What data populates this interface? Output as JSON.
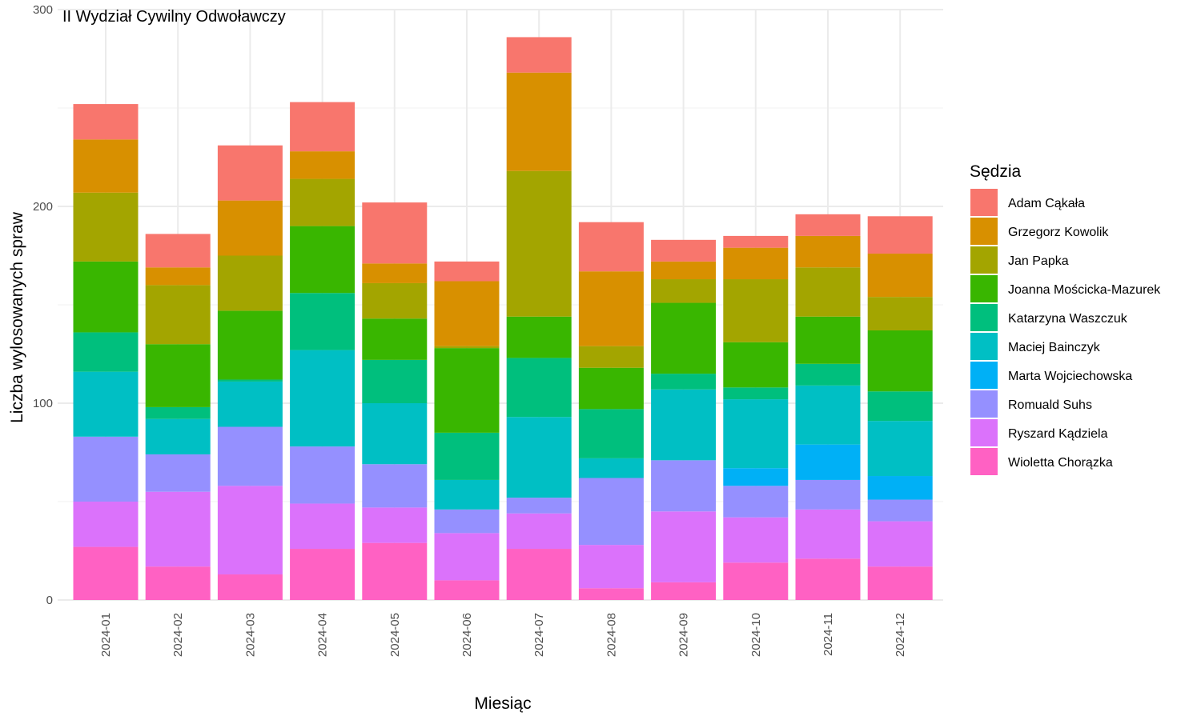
{
  "chart_data": {
    "type": "bar",
    "stacked": true,
    "title": "II Wydział Cywilny Odwoławczy",
    "xlabel": "Miesiąc",
    "ylabel": "Liczba wylosowanych spraw",
    "ylim": [
      0,
      300
    ],
    "yticks": [
      0,
      100,
      200,
      300
    ],
    "grid": true,
    "legend_title": "Sędzia",
    "legend_position": "right",
    "categories": [
      "2024-01",
      "2024-02",
      "2024-03",
      "2024-04",
      "2024-05",
      "2024-06",
      "2024-07",
      "2024-08",
      "2024-09",
      "2024-10",
      "2024-11",
      "2024-12"
    ],
    "series": [
      {
        "name": "Wioletta Chorązka",
        "color": "#FF61C3",
        "values": [
          27,
          17,
          13,
          26,
          29,
          10,
          26,
          6,
          9,
          19,
          21,
          17
        ]
      },
      {
        "name": "Ryszard Kądziela",
        "color": "#DB72FB",
        "values": [
          23,
          38,
          45,
          23,
          18,
          24,
          18,
          22,
          36,
          23,
          25,
          23
        ]
      },
      {
        "name": "Romuald Suhs",
        "color": "#9590FF",
        "values": [
          33,
          19,
          30,
          29,
          22,
          12,
          8,
          34,
          26,
          16,
          15,
          11
        ]
      },
      {
        "name": "Marta Wojciechowska",
        "color": "#00B0F6",
        "values": [
          0,
          0,
          0,
          0,
          0,
          0,
          0,
          0,
          0,
          9,
          18,
          12
        ]
      },
      {
        "name": "Maciej Bainczyk",
        "color": "#00BFC4",
        "values": [
          33,
          18,
          23,
          49,
          31,
          15,
          41,
          10,
          36,
          35,
          30,
          28
        ]
      },
      {
        "name": "Katarzyna Waszczuk",
        "color": "#00BF7D",
        "values": [
          20,
          6,
          1,
          29,
          22,
          24,
          30,
          25,
          8,
          6,
          11,
          15
        ]
      },
      {
        "name": "Joanna Mościcka-Mazurek",
        "color": "#39B600",
        "values": [
          36,
          32,
          35,
          34,
          21,
          43,
          21,
          21,
          36,
          23,
          24,
          31
        ]
      },
      {
        "name": "Jan Papka",
        "color": "#A3A500",
        "values": [
          35,
          30,
          28,
          24,
          18,
          1,
          74,
          11,
          12,
          32,
          25,
          17
        ]
      },
      {
        "name": "Grzegorz Kowolik",
        "color": "#D89000",
        "values": [
          27,
          9,
          28,
          14,
          10,
          33,
          50,
          38,
          9,
          16,
          16,
          22
        ]
      },
      {
        "name": "Adam Cąkała",
        "color": "#F8766D",
        "values": [
          18,
          17,
          28,
          25,
          31,
          10,
          18,
          25,
          11,
          6,
          11,
          19
        ]
      }
    ],
    "legend_order": [
      "Adam Cąkała",
      "Grzegorz Kowolik",
      "Jan Papka",
      "Joanna Mościcka-Mazurek",
      "Katarzyna Waszczuk",
      "Maciej Bainczyk",
      "Marta Wojciechowska",
      "Romuald Suhs",
      "Ryszard Kądziela",
      "Wioletta Chorązka"
    ]
  }
}
